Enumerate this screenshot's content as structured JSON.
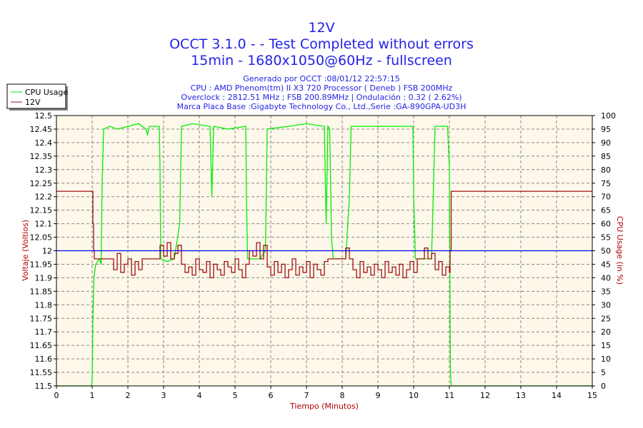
{
  "chart_data": {
    "type": "line",
    "title": "12V",
    "subtitle_lines": [
      "OCCT 3.1.0 -  - Test Completed without errors",
      "15min - 1680x1050@60Hz - fullscreen"
    ],
    "info_lines": [
      "Generado por OCCT :08/01/12 22:57:15",
      "CPU : AMD Phenom(tm) II X3 720 Processor ( Deneb ) FSB 200MHz",
      "Overclock : 2812.51 MHz ; FSB 200.89MHz | Ondulación : 0.32 ( 2.62%)",
      "Marca Placa Base :Gigabyte Technology Co., Ltd.,Serie :GA-890GPA-UD3H"
    ],
    "xlabel": "Tiempo (Minutos)",
    "ylabel": "Voltaje (Voltios)",
    "y2label": "CPU Usage (in %)",
    "xlim": [
      0,
      15
    ],
    "ylim": [
      11.5,
      12.5
    ],
    "y2lim": [
      0,
      100
    ],
    "x_ticks": [
      "0",
      "1",
      "2",
      "3",
      "4",
      "5",
      "6",
      "7",
      "8",
      "9",
      "10",
      "11",
      "12",
      "13",
      "14",
      "15"
    ],
    "y_ticks": [
      "11.5",
      "11.55",
      "11.6",
      "11.65",
      "11.7",
      "11.75",
      "11.8",
      "11.85",
      "11.9",
      "11.95",
      "12",
      "12.05",
      "12.1",
      "12.15",
      "12.2",
      "12.25",
      "12.3",
      "12.35",
      "12.4",
      "12.45",
      "12.5"
    ],
    "y2_ticks": [
      "0",
      "5",
      "10",
      "15",
      "20",
      "25",
      "30",
      "35",
      "40",
      "45",
      "50",
      "55",
      "60",
      "65",
      "70",
      "75",
      "80",
      "85",
      "90",
      "95",
      "100"
    ],
    "grid": true,
    "legend_position": "top-left",
    "reference_line": {
      "value": 12,
      "color": "#0000ff"
    },
    "series": [
      {
        "name": "CPU Usage",
        "axis": "right",
        "color": "#00ee00",
        "points": [
          [
            0,
            0
          ],
          [
            0.98,
            0
          ],
          [
            1.0,
            2
          ],
          [
            1.02,
            25
          ],
          [
            1.05,
            40
          ],
          [
            1.1,
            45
          ],
          [
            1.2,
            47
          ],
          [
            1.25,
            45
          ],
          [
            1.28,
            75
          ],
          [
            1.32,
            95
          ],
          [
            1.5,
            96
          ],
          [
            1.7,
            95
          ],
          [
            2,
            96
          ],
          [
            2.3,
            97
          ],
          [
            2.5,
            95
          ],
          [
            2.55,
            93
          ],
          [
            2.6,
            96
          ],
          [
            2.88,
            96
          ],
          [
            2.9,
            80
          ],
          [
            2.92,
            47
          ],
          [
            3.1,
            46
          ],
          [
            3.3,
            47
          ],
          [
            3.45,
            60
          ],
          [
            3.5,
            96
          ],
          [
            3.8,
            97
          ],
          [
            4.3,
            96
          ],
          [
            4.35,
            70
          ],
          [
            4.4,
            96
          ],
          [
            4.8,
            95
          ],
          [
            5.3,
            96
          ],
          [
            5.32,
            70
          ],
          [
            5.35,
            47
          ],
          [
            5.7,
            47
          ],
          [
            5.85,
            50
          ],
          [
            5.9,
            95
          ],
          [
            6.5,
            96
          ],
          [
            7.0,
            97
          ],
          [
            7.5,
            96
          ],
          [
            7.55,
            60
          ],
          [
            7.6,
            96
          ],
          [
            7.65,
            95
          ],
          [
            7.7,
            55
          ],
          [
            7.75,
            47
          ],
          [
            8.1,
            47
          ],
          [
            8.2,
            70
          ],
          [
            8.25,
            96
          ],
          [
            9.0,
            96
          ],
          [
            9.5,
            96
          ],
          [
            9.98,
            96
          ],
          [
            10.0,
            70
          ],
          [
            10.05,
            47
          ],
          [
            10.5,
            47
          ],
          [
            10.6,
            96
          ],
          [
            10.95,
            96
          ],
          [
            11.0,
            80
          ],
          [
            11.03,
            5
          ],
          [
            11.05,
            0
          ],
          [
            15,
            0
          ]
        ]
      },
      {
        "name": "12V",
        "axis": "left",
        "color": "#a01010",
        "head": [
          [
            0,
            12.22
          ],
          [
            1.0,
            12.22
          ],
          [
            1.02,
            12.1
          ],
          [
            1.04,
            12.0
          ],
          [
            1.06,
            11.97
          ]
        ],
        "x_start": 1.1,
        "x_step": 0.1,
        "values": [
          11.97,
          11.97,
          11.97,
          11.97,
          11.97,
          11.93,
          11.99,
          11.92,
          11.95,
          11.97,
          11.91,
          11.96,
          11.93,
          11.97,
          11.97,
          11.97,
          11.97,
          11.97,
          12.02,
          11.98,
          12.03,
          11.97,
          11.99,
          12.02,
          11.95,
          11.92,
          11.94,
          11.91,
          11.97,
          11.93,
          11.92,
          11.96,
          11.9,
          11.95,
          11.93,
          11.91,
          11.96,
          11.94,
          11.92,
          11.97,
          11.93,
          11.9,
          11.95,
          12.0,
          11.98,
          12.03,
          11.97,
          12.02,
          11.94,
          11.91,
          11.96,
          11.92,
          11.95,
          11.9,
          11.93,
          11.97,
          11.91,
          11.94,
          11.92,
          11.96,
          11.9,
          11.95,
          11.93,
          11.91,
          11.96,
          11.97,
          11.97,
          11.97,
          11.97,
          11.97,
          12.01,
          11.97,
          11.93,
          11.9,
          11.96,
          11.92,
          11.94,
          11.91,
          11.95,
          11.93,
          11.9,
          11.96,
          11.92,
          11.94,
          11.91,
          11.95,
          11.9,
          11.93,
          11.96,
          11.92,
          11.97,
          11.97,
          12.01,
          11.97,
          11.99,
          11.93,
          11.96,
          11.91,
          11.94,
          11.92
        ],
        "tail": [
          [
            11.02,
            12.0
          ],
          [
            11.05,
            12.22
          ],
          [
            15,
            12.22
          ]
        ]
      }
    ]
  }
}
